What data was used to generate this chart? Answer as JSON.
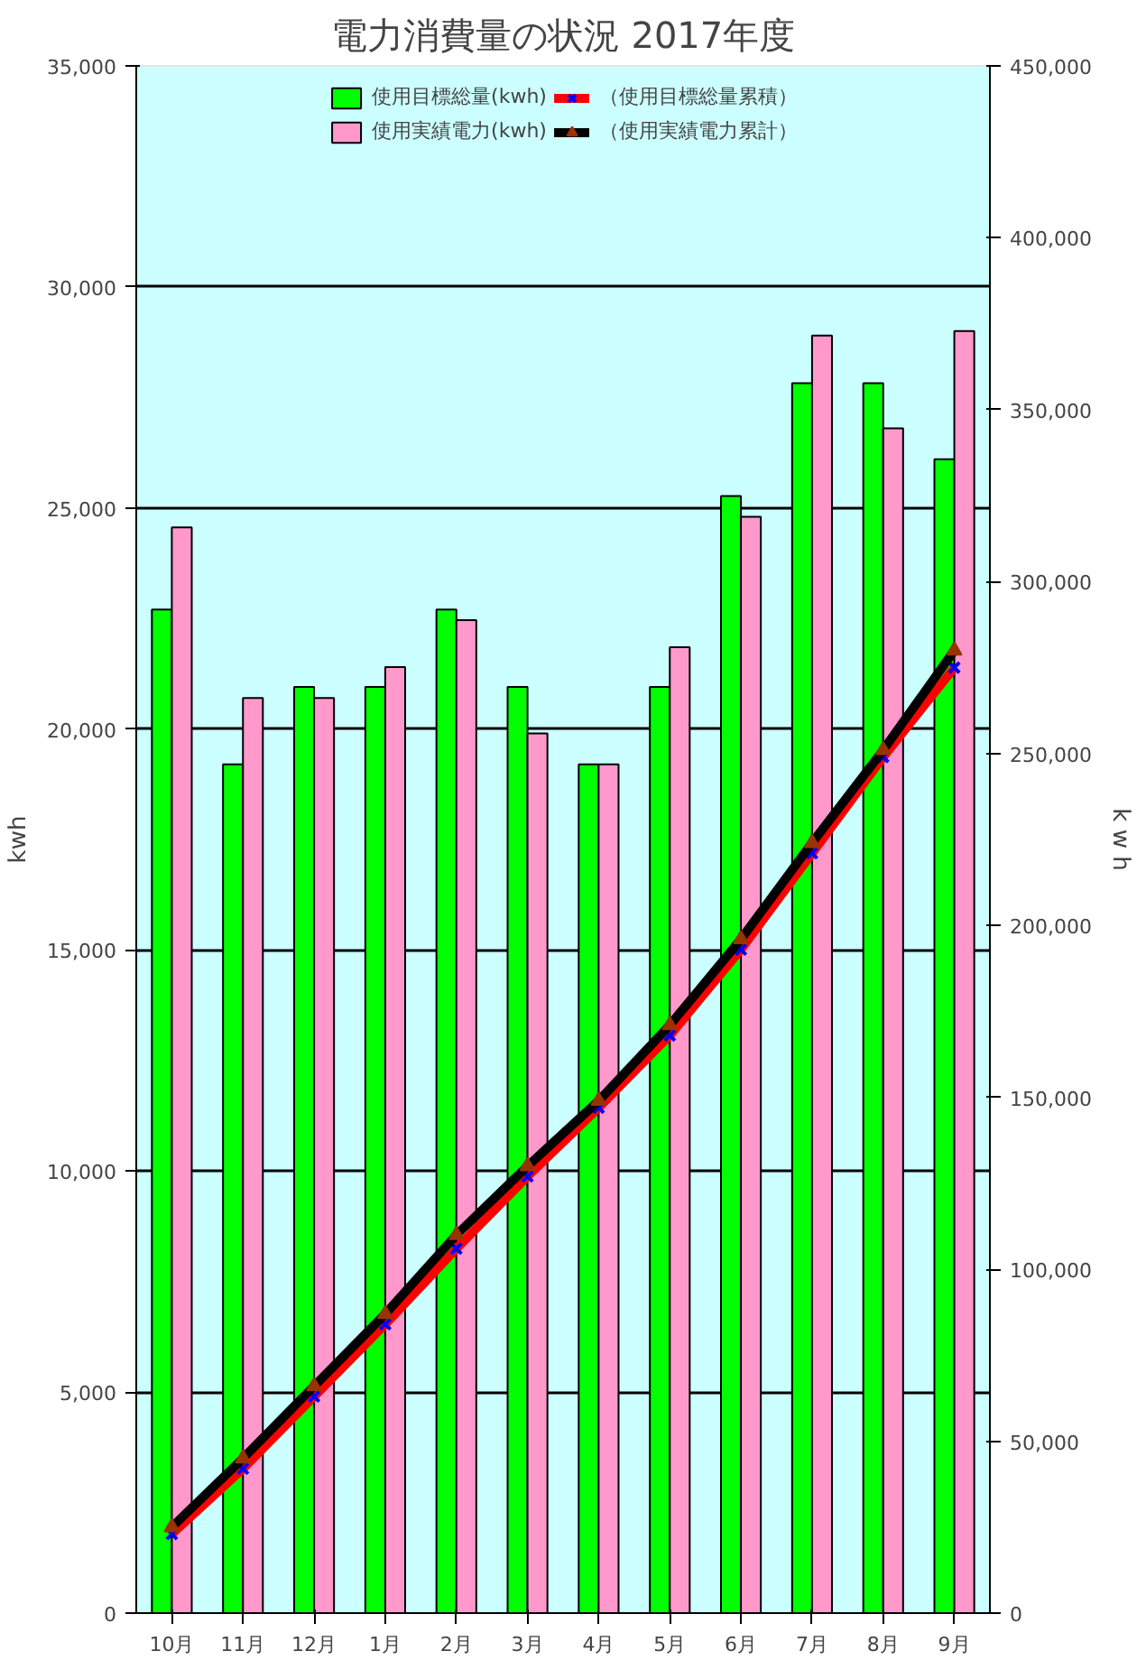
{
  "chart_data": {
    "type": "bar",
    "title": "電力消費量の状況 2017年度",
    "ylabel": "kwh",
    "y2label": "k w h",
    "categories": [
      "10月",
      "11月",
      "12月",
      "1月",
      "2月",
      "3月",
      "4月",
      "5月",
      "6月",
      "7月",
      "8月",
      "9月"
    ],
    "series": [
      {
        "name": "使用目標総量(kwh)",
        "color": "#00ff00",
        "values": [
          22700,
          19200,
          20950,
          20950,
          22700,
          20950,
          19200,
          20950,
          25270,
          27820,
          27820,
          26100
        ]
      },
      {
        "name": "使用実績電力(kwh)",
        "color": "#ff99cc",
        "values": [
          24560,
          20700,
          20700,
          21400,
          22460,
          19900,
          19200,
          21850,
          24800,
          28900,
          26800,
          29000
        ]
      },
      {
        "name": "（使用目標総量累積）",
        "type": "line",
        "axis": "y2",
        "color": "#ff0000",
        "marker": "cross",
        "values": [
          23000,
          42000,
          63000,
          84000,
          106000,
          127000,
          147000,
          168000,
          193000,
          221000,
          249000,
          275000
        ]
      },
      {
        "name": "（使用実績電力累計）",
        "type": "line",
        "axis": "y2",
        "color": "#000000",
        "marker": "triangle",
        "values": [
          25000,
          45000,
          66000,
          87000,
          110000,
          130000,
          149000,
          171000,
          196000,
          224000,
          251000,
          280000
        ]
      }
    ],
    "ylim": [
      0,
      35000
    ],
    "yticks": [
      0,
      {
        "value": 5000,
        "label": "5,000"
      },
      {
        "value": 10000,
        "label": "10,000"
      },
      {
        "value": 15000,
        "label": "15,000"
      },
      {
        "value": 20000,
        "label": "20,000"
      },
      {
        "value": 25000,
        "label": "25,000"
      },
      {
        "value": 30000,
        "label": "30,000"
      },
      {
        "value": 35000,
        "label": "35,000"
      }
    ],
    "y2lim": [
      0,
      450000
    ],
    "y2ticks": [
      0,
      {
        "value": 50000,
        "label": "50,000"
      },
      {
        "value": 100000,
        "label": "100,000"
      },
      {
        "value": 150000,
        "label": "150,000"
      },
      {
        "value": 200000,
        "label": "200,000"
      },
      {
        "value": 250000,
        "label": "250,000"
      },
      {
        "value": 300000,
        "label": "300,000"
      },
      {
        "value": 350000,
        "label": "350,000"
      },
      {
        "value": 400000,
        "label": "400,000"
      },
      {
        "value": 450000,
        "label": "450,000"
      }
    ],
    "grid": "y",
    "legend": "top"
  }
}
